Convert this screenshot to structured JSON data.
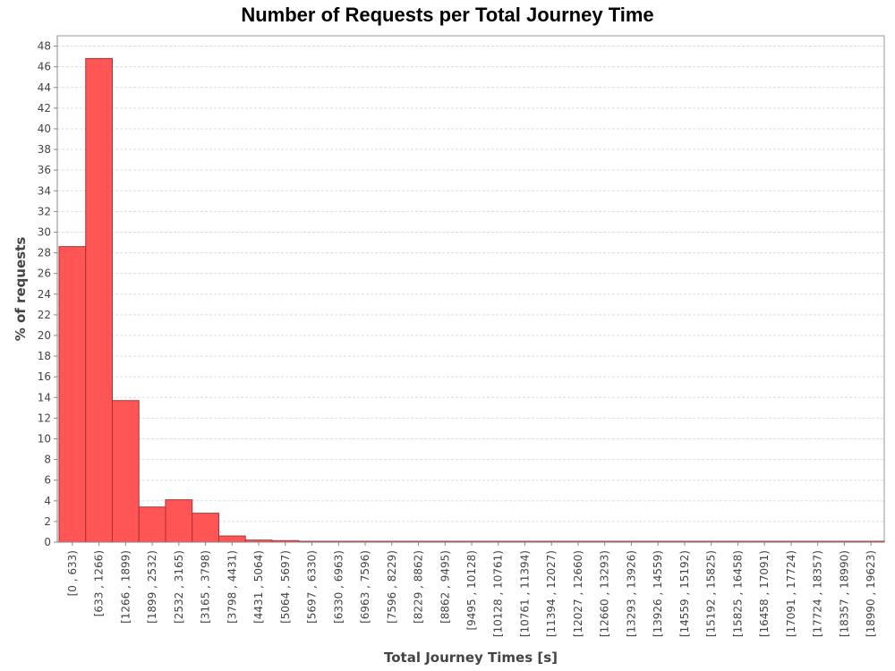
{
  "chart_data": {
    "type": "bar",
    "title": "Number of Requests per Total Journey Time",
    "xlabel": "Total Journey Times [s]",
    "ylabel": "% of requests",
    "ylim": [
      0,
      49
    ],
    "yticks": [
      0,
      2,
      4,
      6,
      8,
      10,
      12,
      14,
      16,
      18,
      20,
      22,
      24,
      26,
      28,
      30,
      32,
      34,
      36,
      38,
      40,
      42,
      44,
      46,
      48
    ],
    "grid": true,
    "legend": "none",
    "bar_color": "#ff5555",
    "bar_edge_color": "#aa3333",
    "categories": [
      "[0 , 633)",
      "[633 , 1266)",
      "[1266 , 1899)",
      "[1899 , 2532)",
      "[2532 , 3165)",
      "[3165 , 3798)",
      "[3798 , 4431)",
      "[4431 , 5064)",
      "[5064 , 5697)",
      "[5697 , 6330)",
      "[6330 , 6963)",
      "[6963 , 7596)",
      "[7596 , 8229)",
      "[8229 , 8862)",
      "[8862 , 9495)",
      "[9495 , 10128)",
      "[10128 , 10761)",
      "[10761 , 11394)",
      "[11394 , 12027)",
      "[12027 , 12660)",
      "[12660 , 13293)",
      "[13293 , 13926)",
      "[13926 , 14559)",
      "[14559 , 15192)",
      "[15192 , 15825)",
      "[15825 , 16458)",
      "[16458 , 17091)",
      "[17091 , 17724)",
      "[17724 , 18357)",
      "[18357 , 18990)",
      "[18990 , 19623)"
    ],
    "values": [
      28.6,
      46.8,
      13.7,
      3.4,
      4.1,
      2.8,
      0.6,
      0.2,
      0.15,
      0.08,
      0.05,
      0.04,
      0.03,
      0.03,
      0.02,
      0.02,
      0.02,
      0.02,
      0.02,
      0.02,
      0.02,
      0.02,
      0.02,
      0.02,
      0.02,
      0.02,
      0.02,
      0.02,
      0.02,
      0.02,
      0.05
    ]
  }
}
